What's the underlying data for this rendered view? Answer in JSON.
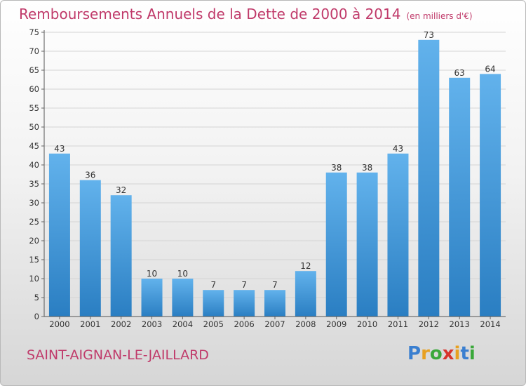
{
  "header": {
    "title": "Remboursements Annuels de la Dette de 2000 à 2014",
    "subtitle": "(en milliers d'€)"
  },
  "footer": {
    "commune": "SAINT-AIGNAN-LE-JAILLARD",
    "logo_letters": [
      "P",
      "r",
      "o",
      "x",
      "i",
      "t",
      "i"
    ],
    "logo_colors": [
      "#3a7fd0",
      "#e8a020",
      "#3aa83a",
      "#d8342c",
      "#e8a020",
      "#3a7fd0",
      "#3aa83a"
    ]
  },
  "colors": {
    "title": "#c03a6a",
    "bar_light": "#62b2ec",
    "bar_dark": "#2a7ec2"
  },
  "chart_data": {
    "type": "bar",
    "title": "Remboursements Annuels de la Dette de 2000 à 2014",
    "subtitle": "(en milliers d'€)",
    "categories": [
      "2000",
      "2001",
      "2002",
      "2003",
      "2004",
      "2005",
      "2006",
      "2007",
      "2008",
      "2009",
      "2010",
      "2011",
      "2012",
      "2013",
      "2014"
    ],
    "values": [
      43,
      36,
      32,
      10,
      10,
      7,
      7,
      7,
      12,
      38,
      38,
      43,
      73,
      63,
      64
    ],
    "ylim": [
      0,
      75
    ],
    "yticks": [
      0,
      5,
      10,
      15,
      20,
      25,
      30,
      35,
      40,
      45,
      50,
      55,
      60,
      65,
      70,
      75
    ],
    "grid": true,
    "legend": "none"
  }
}
